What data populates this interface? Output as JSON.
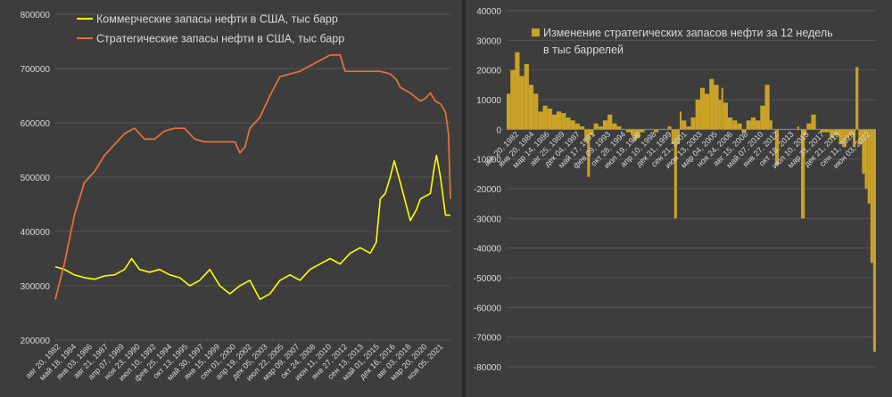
{
  "colors": {
    "background": "#3d3d3d",
    "grid": "#555555",
    "text": "#d9d9d9",
    "commercial": "#ffff00",
    "strategic": "#e0703a",
    "change": "#c9a227"
  },
  "chart_data": [
    {
      "type": "line",
      "title": "",
      "ylim": [
        200000,
        800000
      ],
      "yticks": [
        "800000",
        "700000",
        "600000",
        "500000",
        "400000",
        "300000",
        "200000"
      ],
      "x_tick_labels": [
        "авг 20, 1982",
        "май 18, 1984",
        "янв 03, 1986",
        "авг 21, 1987",
        "апр 07, 1989",
        "ноя 23, 1990",
        "июл 10, 1992",
        "фев 25, 1994",
        "окт 13, 1995",
        "май 30, 1997",
        "янв 15, 1999",
        "сен 01, 2000",
        "апр 19, 2002",
        "дек 05, 2003",
        "июл 22, 2005",
        "мар 09, 2007",
        "окт 24, 2008",
        "июн 11, 2010",
        "янв 27, 2012",
        "сен 13, 2013",
        "май 01, 2015",
        "дек 16, 2016",
        "авг 03, 2018",
        "мар 20, 2020",
        "ноя 05, 2021"
      ],
      "xlim": [
        1982.6,
        2022.0
      ],
      "grid": true,
      "legend": "top-left",
      "series": [
        {
          "name": "Коммерческие запасы нефти в США, тыс барр",
          "color": "#ffff00",
          "x": [
            1982.6,
            1983.5,
            1984.5,
            1985.5,
            1986.5,
            1987.5,
            1988.5,
            1989.5,
            1990.2,
            1991.0,
            1992.0,
            1993.0,
            1994.0,
            1995.0,
            1996.0,
            1997.0,
            1998.0,
            1999.0,
            2000.0,
            2001.0,
            2002.0,
            2003.0,
            2004.0,
            2005.0,
            2006.0,
            2007.0,
            2008.0,
            2009.0,
            2010.0,
            2011.0,
            2012.0,
            2013.0,
            2014.0,
            2014.6,
            2015.0,
            2015.5,
            2016.0,
            2016.4,
            2017.0,
            2018.0,
            2018.6,
            2019.0,
            2020.0,
            2020.4,
            2020.6,
            2021.0,
            2021.5,
            2022.0
          ],
          "y": [
            335000,
            330000,
            320000,
            315000,
            312000,
            318000,
            320000,
            330000,
            350000,
            330000,
            325000,
            330000,
            320000,
            315000,
            300000,
            310000,
            330000,
            300000,
            285000,
            300000,
            310000,
            275000,
            285000,
            310000,
            320000,
            310000,
            330000,
            340000,
            350000,
            340000,
            360000,
            370000,
            360000,
            380000,
            460000,
            470000,
            500000,
            530000,
            490000,
            420000,
            440000,
            460000,
            470000,
            520000,
            540000,
            500000,
            430000,
            430000
          ]
        },
        {
          "name": "Стратегические запасы нефти в США, тыс барр",
          "color": "#e0703a",
          "x": [
            1982.6,
            1983.5,
            1984.5,
            1985.5,
            1986.5,
            1987.5,
            1988.5,
            1989.5,
            1990.5,
            1991.5,
            1992.5,
            1993.5,
            1994.5,
            1995.5,
            1996.5,
            1997.5,
            1998.5,
            1999.5,
            2000.5,
            2001.0,
            2001.5,
            2002.0,
            2003.0,
            2004.0,
            2005.0,
            2006.0,
            2007.0,
            2008.0,
            2009.0,
            2010.0,
            2011.0,
            2011.5,
            2012.0,
            2013.0,
            2014.0,
            2015.0,
            2016.0,
            2016.6,
            2017.0,
            2018.0,
            2019.0,
            2019.5,
            2020.0,
            2020.5,
            2021.0,
            2021.5,
            2021.8,
            2022.0
          ],
          "y": [
            275000,
            340000,
            430000,
            490000,
            510000,
            540000,
            560000,
            580000,
            590000,
            570000,
            570000,
            585000,
            590000,
            590000,
            570000,
            565000,
            565000,
            565000,
            565000,
            545000,
            555000,
            590000,
            610000,
            650000,
            685000,
            690000,
            695000,
            705000,
            715000,
            725000,
            725000,
            695000,
            695000,
            695000,
            695000,
            695000,
            690000,
            680000,
            665000,
            655000,
            640000,
            645000,
            655000,
            640000,
            635000,
            620000,
            580000,
            460000
          ]
        }
      ]
    },
    {
      "type": "bar",
      "title": "",
      "ylim": [
        -80000,
        40000
      ],
      "yticks": [
        "40000",
        "30000",
        "20000",
        "10000",
        "0",
        "-10000",
        "-20000",
        "-30000",
        "-40000",
        "-50000",
        "-60000",
        "-70000",
        "-80000"
      ],
      "x_tick_labels": [
        "авг 20, 1982",
        "янв 20, 1984",
        "мар 14, 1986",
        "авг 25, 1989",
        "дек 04, 1987",
        "май 17, 1991",
        "фев 09, 1993",
        "окт 28, 1994",
        "июл 19, 1996",
        "апр 10, 1998",
        "дек 31, 1999",
        "сен 21, 2001",
        "июн 13, 2003",
        "мар 04, 2005",
        "ноя 24, 2006",
        "авг 15, 2008",
        "май 07, 2010",
        "янв 27, 2012",
        "окт 18, 2013",
        "июл 10, 2015",
        "мар 31, 2017",
        "дек 21, 2018",
        "сен 11, 2020",
        "июн 03, 2022"
      ],
      "xlim": [
        1982.6,
        2022.5
      ],
      "grid": true,
      "legend": "top-left",
      "series": [
        {
          "name": "Изменение стратегических запасов нефти за 12 недель в тыс баррелей",
          "color": "#c9a227",
          "x": [
            1982.6,
            1983.0,
            1983.5,
            1984.0,
            1984.5,
            1985.0,
            1985.5,
            1986.0,
            1986.5,
            1987.0,
            1987.5,
            1988.0,
            1988.5,
            1989.0,
            1989.5,
            1990.0,
            1990.5,
            1991.0,
            1991.3,
            1991.6,
            1992.0,
            1992.5,
            1993.0,
            1993.5,
            1994.0,
            1994.5,
            1995.0,
            1995.5,
            1996.0,
            1996.3,
            1996.6,
            1997.0,
            1997.5,
            1998.0,
            1998.5,
            1999.0,
            1999.5,
            2000.0,
            2000.4,
            2000.7,
            2001.0,
            2001.3,
            2001.5,
            2002.0,
            2002.5,
            2003.0,
            2003.5,
            2004.0,
            2004.5,
            2005.0,
            2005.5,
            2005.8,
            2006.0,
            2006.5,
            2007.0,
            2007.5,
            2008.0,
            2008.5,
            2009.0,
            2009.5,
            2010.0,
            2010.5,
            2011.0,
            2011.3,
            2011.6,
            2012.0,
            2012.5,
            2013.0,
            2013.5,
            2014.0,
            2014.2,
            2014.4,
            2014.8,
            2015.0,
            2015.5,
            2016.0,
            2016.5,
            2017.0,
            2017.5,
            2018.0,
            2018.5,
            2019.0,
            2019.3,
            2019.6,
            2020.0,
            2020.3,
            2020.6,
            2021.0,
            2021.3,
            2021.6,
            2021.9,
            2022.2
          ],
          "y": [
            12000,
            20000,
            26000,
            18000,
            22000,
            15000,
            12000,
            6000,
            8000,
            7000,
            5000,
            6000,
            5500,
            4000,
            3000,
            2000,
            1000,
            -4000,
            -16000,
            -2000,
            2000,
            1000,
            3000,
            5000,
            2000,
            1000,
            0,
            -1000,
            -2000,
            -4000,
            -3000,
            -1000,
            0,
            0,
            -1000,
            0,
            0,
            1000,
            -5000,
            -30000,
            -5000,
            6000,
            3000,
            1000,
            4000,
            10000,
            14000,
            12000,
            17000,
            15000,
            10000,
            14000,
            9000,
            4000,
            3000,
            2000,
            -1000,
            3000,
            4000,
            3000,
            8000,
            15000,
            3000,
            0,
            -12000,
            0,
            0,
            0,
            0,
            1000,
            0,
            -30000,
            -2000,
            2000,
            5000,
            0,
            -1000,
            -1000,
            -3000,
            -2000,
            -5000,
            -6000,
            -3000,
            -2000,
            -6000,
            21000,
            -5000,
            -15000,
            -20000,
            -25000,
            -45000,
            -75000
          ]
        }
      ]
    }
  ]
}
